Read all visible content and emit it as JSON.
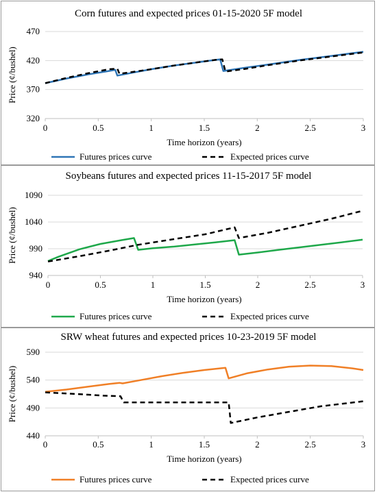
{
  "chart_data": [
    {
      "type": "line",
      "title": "Corn futures and expected prices 01-15-2020 5F model",
      "xlabel": "Time horizon (years)",
      "ylabel": "Price (¢/bushel)",
      "xlim": [
        0,
        3
      ],
      "ylim": [
        320,
        470
      ],
      "xticks": [
        "0",
        "0.5",
        "1",
        "1.5",
        "2",
        "2.5",
        "3"
      ],
      "yticks": [
        "320",
        "370",
        "420",
        "470"
      ],
      "grid": "horizontal",
      "legend": "bottom",
      "series": [
        {
          "name": "Futures prices curve",
          "color": "#2e75b6",
          "style": "solid",
          "points": [
            [
              0,
              381
            ],
            [
              0.2,
              389
            ],
            [
              0.4,
              396
            ],
            [
              0.6,
              402
            ],
            [
              0.66,
              404
            ],
            [
              0.68,
              394
            ],
            [
              0.85,
              400
            ],
            [
              1.0,
              405
            ],
            [
              1.2,
              411
            ],
            [
              1.4,
              416
            ],
            [
              1.6,
              421
            ],
            [
              1.65,
              422
            ],
            [
              1.68,
              402
            ],
            [
              1.9,
              408
            ],
            [
              2.1,
              413
            ],
            [
              2.4,
              421
            ],
            [
              2.7,
              428
            ],
            [
              3.0,
              435
            ]
          ]
        },
        {
          "name": "Expected prices curve",
          "color": "#000000",
          "style": "dashed",
          "points": [
            [
              0,
              381
            ],
            [
              0.2,
              390
            ],
            [
              0.4,
              398
            ],
            [
              0.6,
              405
            ],
            [
              0.68,
              406
            ],
            [
              0.7,
              397
            ],
            [
              0.85,
              401
            ],
            [
              1.0,
              405
            ],
            [
              1.2,
              411
            ],
            [
              1.4,
              416
            ],
            [
              1.6,
              421
            ],
            [
              1.67,
              422
            ],
            [
              1.7,
              401
            ],
            [
              1.9,
              406
            ],
            [
              2.1,
              412
            ],
            [
              2.4,
              420
            ],
            [
              2.7,
              427
            ],
            [
              3.0,
              434
            ]
          ]
        }
      ]
    },
    {
      "type": "line",
      "title": "Soybeans futures and expected prices 11-15-2017 5F model",
      "xlabel": "Time horizon (years)",
      "ylabel": "Price (¢/bushel)",
      "xlim": [
        0,
        3
      ],
      "ylim": [
        940,
        1090
      ],
      "xticks": [
        "0",
        "0.5",
        "1",
        "1.5",
        "2",
        "2.5",
        "3"
      ],
      "yticks": [
        "940",
        "990",
        "1040",
        "1090"
      ],
      "grid": "horizontal",
      "legend": "bottom",
      "series": [
        {
          "name": "Futures prices curve",
          "color": "#1ea84a",
          "style": "solid",
          "points": [
            [
              0,
              967
            ],
            [
              0.1,
              975
            ],
            [
              0.3,
              989
            ],
            [
              0.5,
              999
            ],
            [
              0.7,
              1006
            ],
            [
              0.82,
              1010
            ],
            [
              0.86,
              988
            ],
            [
              1.0,
              991
            ],
            [
              1.2,
              994
            ],
            [
              1.4,
              998
            ],
            [
              1.6,
              1002
            ],
            [
              1.78,
              1006
            ],
            [
              1.82,
              979
            ],
            [
              2.0,
              983
            ],
            [
              2.2,
              988
            ],
            [
              2.5,
              995
            ],
            [
              2.8,
              1002
            ],
            [
              3.0,
              1007
            ]
          ]
        },
        {
          "name": "Expected prices curve",
          "color": "#000000",
          "style": "dashed",
          "points": [
            [
              0,
              966
            ],
            [
              0.3,
              976
            ],
            [
              0.6,
              987
            ],
            [
              0.85,
              997
            ],
            [
              1.2,
              1008
            ],
            [
              1.5,
              1017
            ],
            [
              1.78,
              1030
            ],
            [
              1.82,
              1010
            ],
            [
              2.1,
              1020
            ],
            [
              2.4,
              1033
            ],
            [
              2.7,
              1046
            ],
            [
              3.0,
              1061
            ]
          ]
        }
      ]
    },
    {
      "type": "line",
      "title": "SRW wheat futures and expected prices 10-23-2019 5F model",
      "xlabel": "Time horizon (years)",
      "ylabel": "Price (¢/bushel)",
      "xlim": [
        0,
        3
      ],
      "ylim": [
        440,
        590
      ],
      "xticks": [
        "0",
        "0.5",
        "1",
        "1.5",
        "2",
        "2.5",
        "3"
      ],
      "yticks": [
        "440",
        "490",
        "540",
        "590"
      ],
      "grid": "horizontal",
      "legend": "bottom",
      "series": [
        {
          "name": "Futures prices curve",
          "color": "#f07f26",
          "style": "solid",
          "points": [
            [
              0,
              519
            ],
            [
              0.2,
              523
            ],
            [
              0.4,
              528
            ],
            [
              0.6,
              533
            ],
            [
              0.7,
              535
            ],
            [
              0.73,
              534
            ],
            [
              0.9,
              540
            ],
            [
              1.1,
              547
            ],
            [
              1.3,
              553
            ],
            [
              1.5,
              558
            ],
            [
              1.7,
              562
            ],
            [
              1.73,
              543
            ],
            [
              1.9,
              552
            ],
            [
              2.1,
              559
            ],
            [
              2.3,
              564
            ],
            [
              2.5,
              566
            ],
            [
              2.7,
              565
            ],
            [
              2.9,
              561
            ],
            [
              3.0,
              558
            ]
          ]
        },
        {
          "name": "Expected prices curve",
          "color": "#000000",
          "style": "dashed",
          "points": [
            [
              0,
              518
            ],
            [
              0.3,
              515
            ],
            [
              0.55,
              512
            ],
            [
              0.71,
              511
            ],
            [
              0.74,
              500
            ],
            [
              1.0,
              500
            ],
            [
              1.3,
              500
            ],
            [
              1.73,
              500
            ],
            [
              1.75,
              463
            ],
            [
              2.0,
              473
            ],
            [
              2.3,
              483
            ],
            [
              2.6,
              493
            ],
            [
              3.0,
              502
            ]
          ]
        }
      ]
    }
  ]
}
